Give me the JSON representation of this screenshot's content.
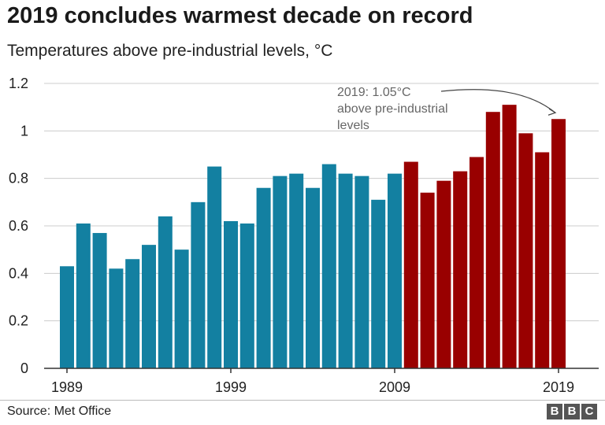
{
  "header": {
    "title": "2019 concludes warmest decade on record",
    "subtitle": "Temperatures above pre-industrial levels, °C"
  },
  "footer": {
    "source": "Source: Met Office",
    "logo_letters": [
      "B",
      "B",
      "C"
    ]
  },
  "colors": {
    "earlier_years": "#1380a1",
    "last_decade": "#990000",
    "gridline": "#cccccc",
    "annotation_text": "#666666"
  },
  "chart_data": {
    "type": "bar",
    "title": "2019 concludes warmest decade on record",
    "subtitle": "Temperatures above pre-industrial levels, °C",
    "xlabel": "",
    "ylabel": "",
    "categories": [
      "1989",
      "1990",
      "1991",
      "1992",
      "1993",
      "1994",
      "1995",
      "1996",
      "1997",
      "1998",
      "1999",
      "2000",
      "2001",
      "2002",
      "2003",
      "2004",
      "2005",
      "2006",
      "2007",
      "2008",
      "2009",
      "2010",
      "2011",
      "2012",
      "2013",
      "2014",
      "2015",
      "2016",
      "2017",
      "2018",
      "2019"
    ],
    "values": [
      0.43,
      0.61,
      0.57,
      0.42,
      0.46,
      0.52,
      0.64,
      0.5,
      0.7,
      0.85,
      0.62,
      0.61,
      0.76,
      0.81,
      0.82,
      0.76,
      0.86,
      0.82,
      0.81,
      0.71,
      0.82,
      0.87,
      0.74,
      0.79,
      0.83,
      0.89,
      1.08,
      1.11,
      0.99,
      0.91,
      1.05
    ],
    "highlight_from": "2010",
    "ylim": [
      0,
      1.2
    ],
    "yticks": [
      0,
      0.2,
      0.4,
      0.6,
      0.8,
      1.0,
      1.2
    ],
    "ytick_labels": [
      "0",
      "0.2",
      "0.4",
      "0.6",
      "0.8",
      "1",
      "1.2"
    ],
    "xtick_labels": [
      "1989",
      "1999",
      "2009",
      "2019"
    ],
    "grid": true,
    "annotation": {
      "target": "2019",
      "lines": [
        "2019: 1.05°C",
        "above pre-industrial",
        "levels"
      ]
    }
  }
}
